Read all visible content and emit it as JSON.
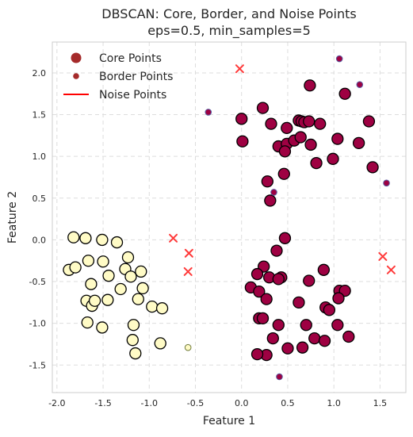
{
  "chart_data": {
    "type": "scatter",
    "title": "DBSCAN: Core, Border, and Noise Points",
    "subtitle": "eps=0.5, min_samples=5",
    "xlabel": "Feature 1",
    "ylabel": "Feature 2",
    "xlim": [
      -2.05,
      1.78
    ],
    "ylim": [
      -1.83,
      2.37
    ],
    "xticks": [
      "-2.0",
      "-1.5",
      "-1.0",
      "-0.5",
      "0.0",
      "0.5",
      "1.0",
      "1.5"
    ],
    "yticks": [
      "-1.5",
      "-1.0",
      "-0.5",
      "0.0",
      "0.5",
      "1.0",
      "1.5",
      "2.0"
    ],
    "grid": true,
    "legend_position": "top-left",
    "legend": [
      {
        "label": "Core Points",
        "marker": "large-circle"
      },
      {
        "label": "Border Points",
        "marker": "small-circle"
      },
      {
        "label": "Noise Points",
        "marker": "line"
      }
    ],
    "colors": {
      "cluster_a": "#fffbc6",
      "cluster_b": "#9e0142",
      "noise": "#ff3a3a",
      "legend_marker": "#a52a2a",
      "legend_line": "#ff0000",
      "grid": "#dddddd",
      "edge": "#000000"
    },
    "series": [
      {
        "name": "Core Points",
        "cluster_a": [
          [
            -1.82,
            0.03
          ],
          [
            -1.69,
            0.02
          ],
          [
            -1.51,
            0.0
          ],
          [
            -1.35,
            -0.03
          ],
          [
            -1.87,
            -0.36
          ],
          [
            -1.8,
            -0.33
          ],
          [
            -1.66,
            -0.25
          ],
          [
            -1.63,
            -0.53
          ],
          [
            -1.5,
            -0.26
          ],
          [
            -1.44,
            -0.43
          ],
          [
            -1.23,
            -0.21
          ],
          [
            -1.26,
            -0.35
          ],
          [
            -1.2,
            -0.44
          ],
          [
            -1.09,
            -0.38
          ],
          [
            -1.07,
            -0.58
          ],
          [
            -1.31,
            -0.59
          ],
          [
            -1.68,
            -0.73
          ],
          [
            -1.62,
            -0.79
          ],
          [
            -1.59,
            -0.73
          ],
          [
            -1.45,
            -0.72
          ],
          [
            -1.12,
            -0.71
          ],
          [
            -0.97,
            -0.8
          ],
          [
            -0.86,
            -0.82
          ],
          [
            -1.67,
            -0.99
          ],
          [
            -1.51,
            -1.05
          ],
          [
            -1.17,
            -1.02
          ],
          [
            -1.18,
            -1.2
          ],
          [
            -1.15,
            -1.36
          ],
          [
            -0.88,
            -1.24
          ]
        ],
        "cluster_b": [
          [
            0.23,
            1.58
          ],
          [
            0.0,
            1.45
          ],
          [
            0.32,
            1.39
          ],
          [
            0.49,
            1.34
          ],
          [
            0.62,
            1.43
          ],
          [
            0.65,
            1.42
          ],
          [
            0.68,
            1.41
          ],
          [
            0.73,
            1.42
          ],
          [
            0.85,
            1.39
          ],
          [
            1.12,
            1.75
          ],
          [
            0.74,
            1.85
          ],
          [
            1.38,
            1.42
          ],
          [
            0.01,
            1.18
          ],
          [
            0.4,
            1.12
          ],
          [
            0.49,
            1.15
          ],
          [
            0.57,
            1.19
          ],
          [
            0.64,
            1.23
          ],
          [
            0.75,
            1.14
          ],
          [
            1.04,
            1.21
          ],
          [
            1.27,
            1.16
          ],
          [
            0.47,
            1.06
          ],
          [
            0.81,
            0.92
          ],
          [
            0.99,
            0.97
          ],
          [
            1.42,
            0.87
          ],
          [
            0.46,
            0.79
          ],
          [
            0.28,
            0.7
          ],
          [
            0.31,
            0.47
          ],
          [
            0.47,
            0.02
          ],
          [
            0.38,
            -0.13
          ],
          [
            0.24,
            -0.32
          ],
          [
            0.17,
            -0.41
          ],
          [
            0.3,
            -0.45
          ],
          [
            0.43,
            -0.45
          ],
          [
            0.1,
            -0.57
          ],
          [
            0.19,
            -0.62
          ],
          [
            0.4,
            -0.47
          ],
          [
            0.73,
            -0.49
          ],
          [
            0.89,
            -0.36
          ],
          [
            1.06,
            -0.61
          ],
          [
            1.12,
            -0.61
          ],
          [
            1.05,
            -0.7
          ],
          [
            0.27,
            -0.71
          ],
          [
            0.62,
            -0.75
          ],
          [
            0.91,
            -0.81
          ],
          [
            0.95,
            -0.84
          ],
          [
            0.19,
            -0.94
          ],
          [
            0.23,
            -0.94
          ],
          [
            0.4,
            -1.02
          ],
          [
            0.7,
            -1.02
          ],
          [
            1.04,
            -1.02
          ],
          [
            0.79,
            -1.18
          ],
          [
            0.9,
            -1.21
          ],
          [
            0.34,
            -1.18
          ],
          [
            0.5,
            -1.3
          ],
          [
            0.66,
            -1.29
          ],
          [
            0.27,
            -1.38
          ],
          [
            0.17,
            -1.37
          ],
          [
            1.16,
            -1.16
          ]
        ]
      },
      {
        "name": "Border Points",
        "cluster_a": [
          [
            -0.58,
            -1.29
          ]
        ],
        "cluster_b": [
          [
            -0.36,
            1.53
          ],
          [
            1.06,
            2.17
          ],
          [
            1.28,
            1.86
          ],
          [
            0.35,
            0.57
          ],
          [
            1.57,
            0.68
          ],
          [
            0.41,
            -1.64
          ]
        ]
      },
      {
        "name": "Noise Points",
        "values": [
          [
            -0.02,
            2.05
          ],
          [
            -0.74,
            0.02
          ],
          [
            -0.57,
            -0.16
          ],
          [
            -0.58,
            -0.38
          ],
          [
            1.53,
            -0.2
          ],
          [
            1.62,
            -0.36
          ]
        ]
      }
    ]
  }
}
